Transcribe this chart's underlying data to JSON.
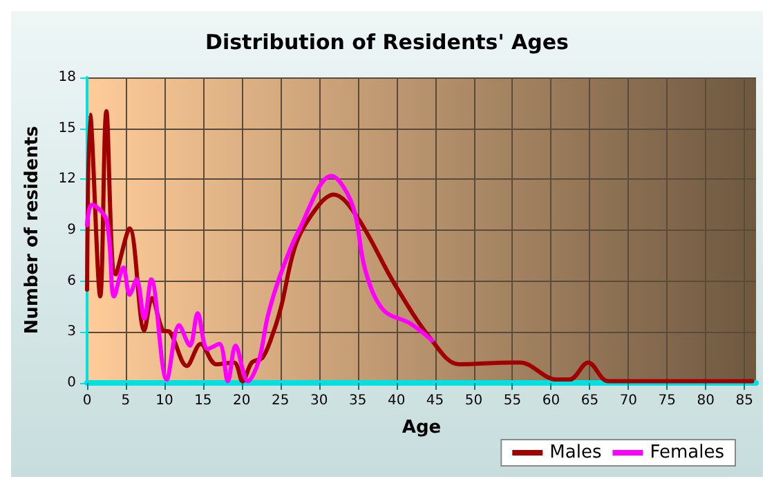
{
  "chart_data": {
    "type": "line",
    "title": "Distribution of Residents' Ages",
    "xlabel": "Age",
    "ylabel": "Number of residents",
    "xlim": [
      0,
      86.5
    ],
    "xticks": [
      0,
      5,
      10,
      15,
      20,
      25,
      30,
      35,
      40,
      45,
      50,
      55,
      60,
      65,
      70,
      75,
      80,
      85
    ],
    "ylim": [
      0,
      18
    ],
    "yticks": [
      0,
      3,
      6,
      9,
      12,
      15,
      18
    ],
    "grid": true,
    "legend": "bottom right",
    "marker": "none",
    "line_style": "solid",
    "series": [
      {
        "name": "Males",
        "color": "#a00000",
        "x": [
          0,
          0.4,
          1.7,
          2.5,
          3.7,
          5.5,
          7.4,
          8.4,
          9.8,
          10.7,
          12.9,
          14.7,
          16.7,
          19,
          20.1,
          21.3,
          22.7,
          24.1,
          25.1,
          27.1,
          30,
          31.9,
          34.9,
          39.8,
          44.6,
          48.1,
          55,
          56,
          60.7,
          62.4,
          64.8,
          67.4,
          75,
          86
        ],
        "values": [
          5.5,
          15.8,
          5.1,
          16,
          6.4,
          9.1,
          3.1,
          5.0,
          3.1,
          3.0,
          1.0,
          2.3,
          1.1,
          1.2,
          0.1,
          1.2,
          1.5,
          3.0,
          4.5,
          8.3,
          10.5,
          11.1,
          9.8,
          5.8,
          2.5,
          1.1,
          1.2,
          1.2,
          0.2,
          0.2,
          1.2,
          0.1,
          0.1,
          0.1
        ]
      },
      {
        "name": "Females",
        "color": "#ff00ff",
        "x": [
          0,
          0.6,
          2.5,
          3.5,
          4.7,
          5.5,
          6.4,
          7.4,
          8.3,
          10.3,
          11.9,
          13.3,
          14.3,
          15.6,
          17.1,
          18.2,
          19.2,
          20.8,
          22.2,
          23.4,
          25.1,
          27.4,
          31.6,
          34.3,
          36,
          38.3,
          41.8,
          44.6
        ],
        "values": [
          9.3,
          10.5,
          9.6,
          5.1,
          6.8,
          5.2,
          6.1,
          3.8,
          6.1,
          0.2,
          3.4,
          2.2,
          4.1,
          2.0,
          2.3,
          0.1,
          2.2,
          0.1,
          1.3,
          4.0,
          6.5,
          9.0,
          12.2,
          10.5,
          6.6,
          4.3,
          3.5,
          2.5
        ]
      }
    ]
  }
}
